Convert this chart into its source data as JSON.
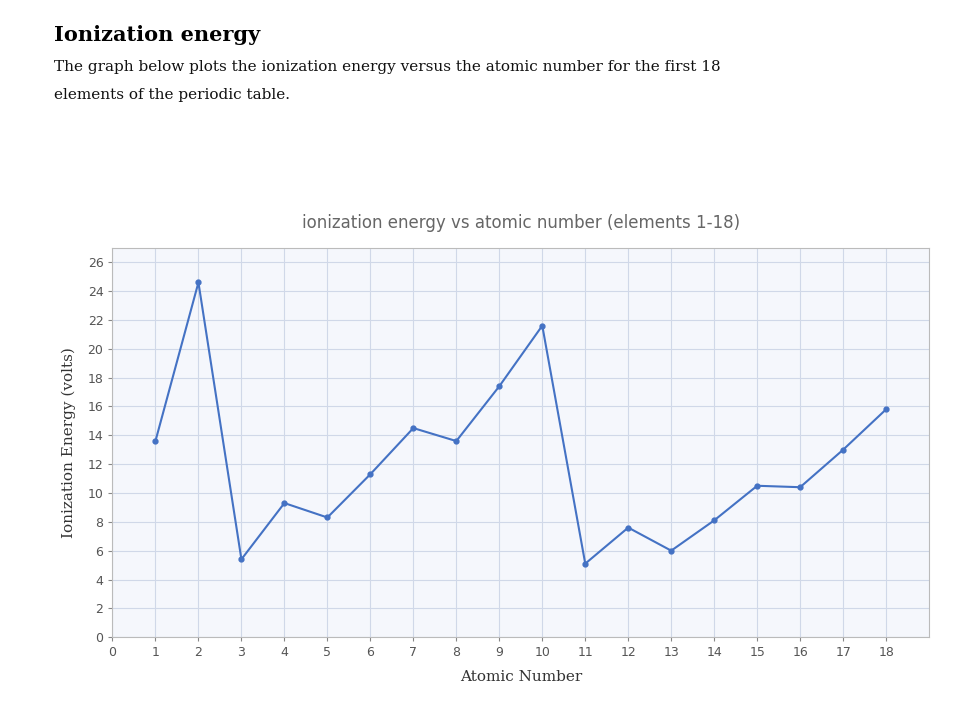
{
  "title": "ionization energy vs atomic number (elements 1-18)",
  "xlabel": "Atomic Number",
  "ylabel": "Ionization Energy (volts)",
  "heading": "Ionization energy",
  "subtext_line1": "The graph below plots the ionization energy versus the atomic number for the first 18",
  "subtext_line2": "elements of the periodic table.",
  "x": [
    1,
    2,
    3,
    4,
    5,
    6,
    7,
    8,
    9,
    10,
    11,
    12,
    13,
    14,
    15,
    16,
    17,
    18
  ],
  "y": [
    13.6,
    24.6,
    5.4,
    9.3,
    8.3,
    11.3,
    14.5,
    13.6,
    17.4,
    21.6,
    5.1,
    7.6,
    6.0,
    8.1,
    10.5,
    10.4,
    13.0,
    15.8
  ],
  "line_color": "#4472C4",
  "marker": "o",
  "marker_size": 3.5,
  "line_width": 1.5,
  "xlim": [
    0,
    19
  ],
  "ylim": [
    0,
    27
  ],
  "yticks": [
    0,
    2,
    4,
    6,
    8,
    10,
    12,
    14,
    16,
    18,
    20,
    22,
    24,
    26
  ],
  "xticks": [
    0,
    1,
    2,
    3,
    4,
    5,
    6,
    7,
    8,
    9,
    10,
    11,
    12,
    13,
    14,
    15,
    16,
    17,
    18
  ],
  "grid_color": "#d0d8e8",
  "background_color": "#ffffff",
  "plot_bg_color": "#f5f7fc",
  "title_fontsize": 12,
  "axis_label_fontsize": 11,
  "tick_fontsize": 9,
  "heading_fontsize": 15,
  "subtext_fontsize": 11
}
